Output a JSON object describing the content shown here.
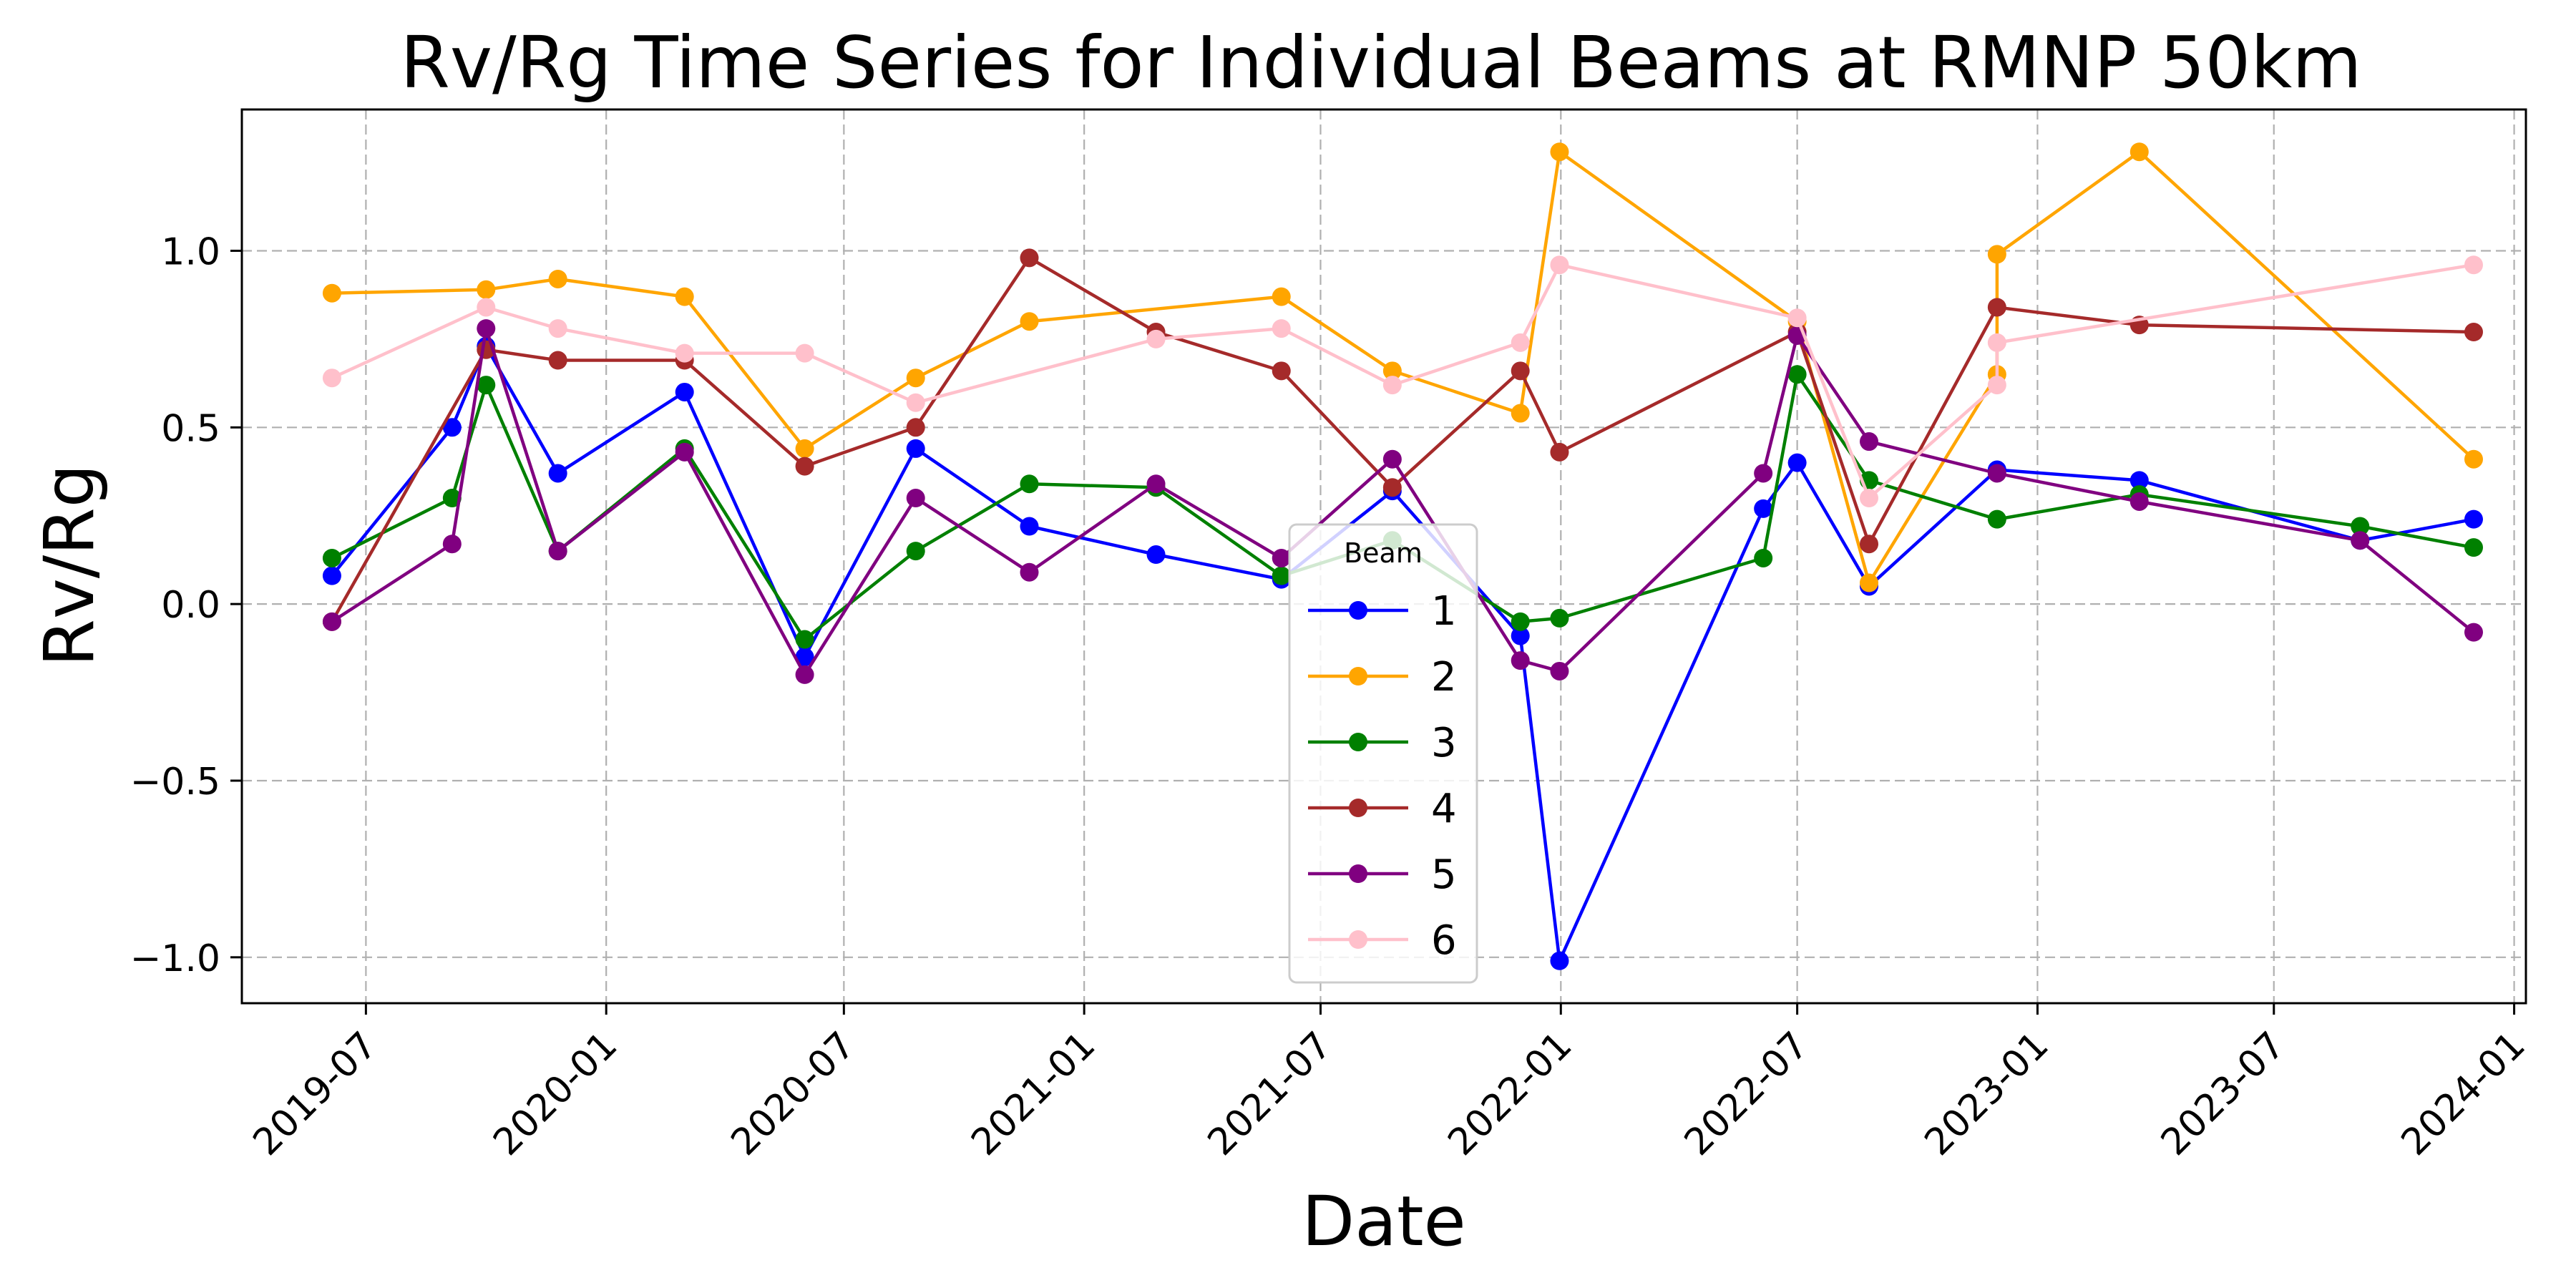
{
  "chart_data": {
    "type": "line",
    "title": "Rv/Rg Time Series for Individual Beams at RMNP 50km",
    "xlabel": "Date",
    "ylabel": "Rv/Rg",
    "xlim": [
      "2019-03-28",
      "2024-01-10"
    ],
    "ylim": [
      -1.13,
      1.4
    ],
    "xticks": [
      "2019-07-01",
      "2020-01-01",
      "2020-07-01",
      "2021-01-01",
      "2021-07-01",
      "2022-01-01",
      "2022-07-01",
      "2023-01-01",
      "2023-07-01",
      "2024-01-01"
    ],
    "xtick_labels": [
      "2019-07",
      "2020-01",
      "2020-07",
      "2021-01",
      "2021-07",
      "2022-01",
      "2022-07",
      "2023-01",
      "2023-07",
      "2024-01"
    ],
    "yticks": [
      -1.0,
      -0.5,
      0.0,
      0.5,
      1.0
    ],
    "ytick_labels": [
      "−1.0",
      "−0.5",
      "0.0",
      "0.5",
      "1.0"
    ],
    "grid": true,
    "legend": {
      "title": "Beam",
      "placement": "lower-center"
    },
    "series": [
      {
        "name": "1",
        "color": "#0000ff",
        "x": [
          "2019-06-05",
          "2019-09-05",
          "2019-10-01",
          "2019-11-25",
          "2020-03-01",
          "2020-06-01",
          "2020-08-25",
          "2020-11-20",
          "2021-02-25",
          "2021-06-01",
          "2021-08-25",
          "2021-12-01",
          "2021-12-31",
          "2022-06-05",
          "2022-07-01",
          "2022-08-25",
          "2022-12-01",
          "2023-03-20",
          "2023-09-05",
          "2023-12-01"
        ],
        "y": [
          0.08,
          0.5,
          0.73,
          0.37,
          0.6,
          -0.15,
          0.44,
          0.22,
          0.14,
          0.07,
          0.32,
          -0.09,
          -1.01,
          0.27,
          0.4,
          0.05,
          0.38,
          0.35,
          0.18,
          0.24
        ]
      },
      {
        "name": "2",
        "color": "#ffa500",
        "x": [
          "2019-06-05",
          "2019-10-01",
          "2019-11-25",
          "2020-03-01",
          "2020-06-01",
          "2020-08-25",
          "2020-11-20",
          "2021-06-01",
          "2021-08-25",
          "2021-12-01",
          "2021-12-31",
          "2022-07-01",
          "2022-08-25",
          "2022-12-01",
          "2022-12-01",
          "2023-03-20",
          "2023-12-01"
        ],
        "y": [
          0.88,
          0.89,
          0.92,
          0.87,
          0.44,
          0.64,
          0.8,
          0.87,
          0.66,
          0.54,
          1.28,
          0.8,
          0.06,
          0.65,
          0.99,
          1.28,
          0.41
        ]
      },
      {
        "name": "3",
        "color": "#008000",
        "x": [
          "2019-06-05",
          "2019-09-05",
          "2019-10-01",
          "2019-11-25",
          "2020-03-01",
          "2020-06-01",
          "2020-08-25",
          "2020-11-20",
          "2021-02-25",
          "2021-06-01",
          "2021-08-25",
          "2021-12-01",
          "2021-12-31",
          "2022-06-05",
          "2022-07-01",
          "2022-08-25",
          "2022-12-01",
          "2023-03-20",
          "2023-09-05",
          "2023-12-01"
        ],
        "y": [
          0.13,
          0.3,
          0.62,
          0.15,
          0.44,
          -0.1,
          0.15,
          0.34,
          0.33,
          0.08,
          0.18,
          -0.05,
          -0.04,
          0.13,
          0.65,
          0.35,
          0.24,
          0.31,
          0.22,
          0.16
        ]
      },
      {
        "name": "4",
        "color": "#a52a2a",
        "x": [
          "2019-06-05",
          "2019-10-01",
          "2019-11-25",
          "2020-03-01",
          "2020-06-01",
          "2020-08-25",
          "2020-11-20",
          "2021-02-25",
          "2021-06-01",
          "2021-08-25",
          "2021-12-01",
          "2021-12-31",
          "2022-07-01",
          "2022-08-25",
          "2022-12-01",
          "2023-03-20",
          "2023-12-01"
        ],
        "y": [
          -0.05,
          0.72,
          0.69,
          0.69,
          0.39,
          0.5,
          0.98,
          0.77,
          0.66,
          0.33,
          0.66,
          0.43,
          0.77,
          0.17,
          0.84,
          0.79,
          0.77
        ]
      },
      {
        "name": "5",
        "color": "#800080",
        "x": [
          "2019-06-05",
          "2019-09-05",
          "2019-10-01",
          "2019-11-25",
          "2020-03-01",
          "2020-06-01",
          "2020-08-25",
          "2020-11-20",
          "2021-02-25",
          "2021-06-01",
          "2021-08-25",
          "2021-12-01",
          "2021-12-31",
          "2022-06-05",
          "2022-07-01",
          "2022-08-25",
          "2022-12-01",
          "2023-03-20",
          "2023-09-05",
          "2023-12-01"
        ],
        "y": [
          -0.05,
          0.17,
          0.78,
          0.15,
          0.43,
          -0.2,
          0.3,
          0.09,
          0.34,
          0.13,
          0.41,
          -0.16,
          -0.19,
          0.37,
          0.76,
          0.46,
          0.37,
          0.29,
          0.18,
          -0.08
        ]
      },
      {
        "name": "6",
        "color": "#ffc0cb",
        "x": [
          "2019-06-05",
          "2019-10-01",
          "2019-11-25",
          "2020-03-01",
          "2020-06-01",
          "2020-08-25",
          "2021-02-25",
          "2021-06-01",
          "2021-08-25",
          "2021-12-01",
          "2021-12-31",
          "2022-07-01",
          "2022-08-25",
          "2022-12-01",
          "2022-12-01",
          "2023-12-01"
        ],
        "y": [
          0.64,
          0.84,
          0.78,
          0.71,
          0.71,
          0.57,
          0.75,
          0.78,
          0.62,
          0.74,
          0.96,
          0.81,
          0.3,
          0.62,
          0.74,
          0.96
        ]
      }
    ]
  }
}
